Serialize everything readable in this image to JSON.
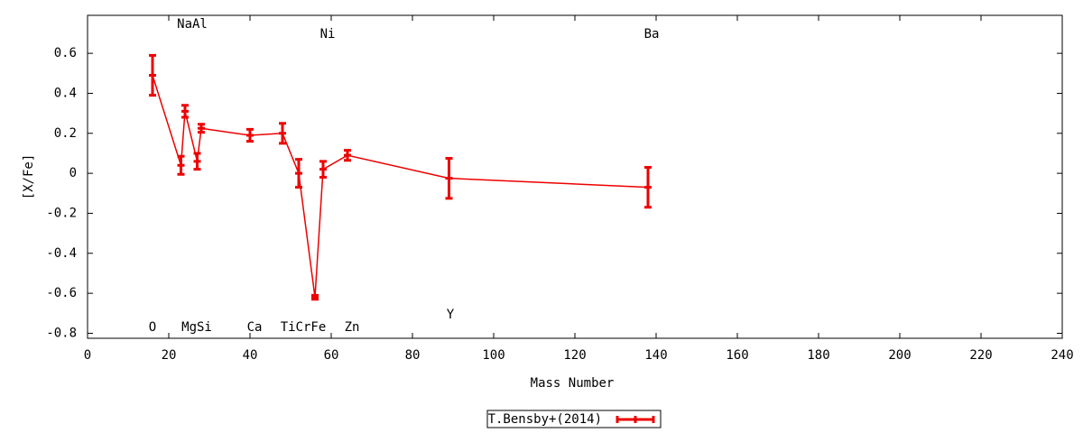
{
  "chart_data": {
    "type": "line",
    "x_label": "Mass Number",
    "y_label": "[X/Fe]",
    "xlim": [
      0,
      240
    ],
    "xticks": [
      0,
      20,
      40,
      60,
      80,
      100,
      120,
      140,
      160,
      180,
      200,
      220,
      240
    ],
    "ylim": [
      -0.825,
      0.79
    ],
    "yticks": [
      -0.8,
      -0.6,
      -0.4,
      -0.2,
      0,
      0.2,
      0.4,
      0.6
    ],
    "legend": "bottom",
    "annotations": [
      "O",
      "NaAl",
      "MgSi",
      "Ca",
      "TiCrFe",
      "Zn",
      "Ni",
      "Y",
      "Ba"
    ],
    "series": [
      {
        "name": "T.Bensby+(2014)",
        "color": "#ee0000",
        "x": [
          16,
          23,
          24,
          27,
          28,
          40,
          48,
          52,
          56,
          58,
          64,
          89,
          138
        ],
        "values": [
          0.49,
          0.04,
          0.31,
          0.06,
          0.225,
          0.19,
          0.2,
          0.0,
          -0.62,
          0.02,
          0.09,
          -0.025,
          -0.07
        ],
        "errors": [
          0.1,
          0.045,
          0.03,
          0.04,
          0.02,
          0.03,
          0.05,
          0.07,
          0.01,
          0.04,
          0.025,
          0.1,
          0.1
        ]
      }
    ]
  }
}
